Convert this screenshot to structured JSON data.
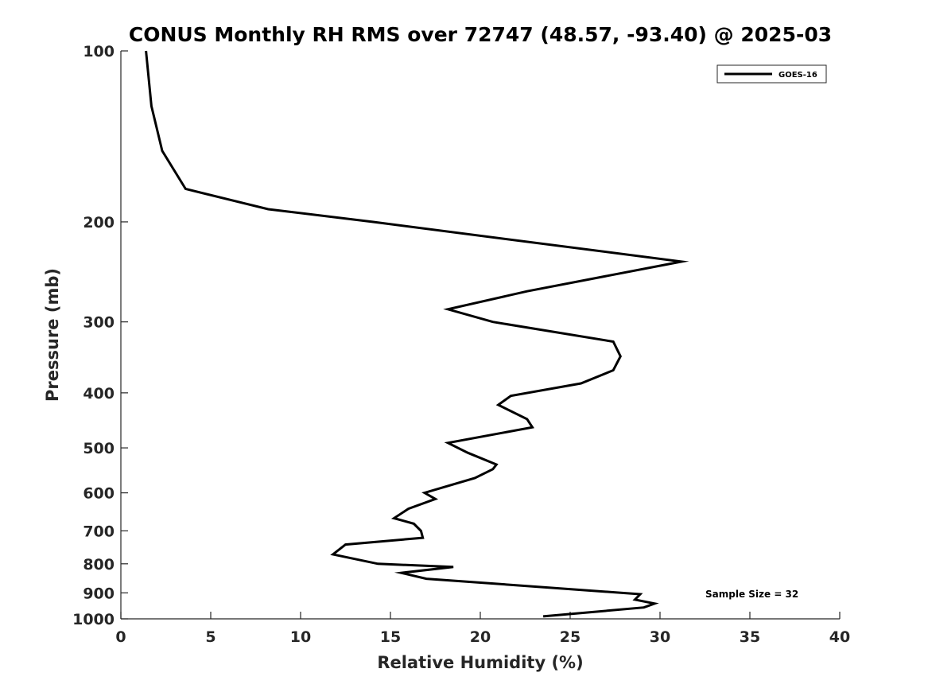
{
  "chart_data": {
    "type": "line",
    "title": "CONUS Monthly RH RMS over 72747 (48.57, -93.40) @ 2025-03",
    "xlabel": "Relative Humidity (%)",
    "ylabel": "Pressure (mb)",
    "xlim": [
      0,
      40
    ],
    "ylim": [
      100,
      1000
    ],
    "y_scale": "log",
    "y_reversed": true,
    "x_ticks": [
      0,
      5,
      10,
      15,
      20,
      25,
      30,
      35,
      40
    ],
    "x_tick_labels": [
      "0",
      "5",
      "10",
      "15",
      "20",
      "25",
      "30",
      "35",
      "40"
    ],
    "y_ticks": [
      100,
      200,
      300,
      400,
      500,
      600,
      700,
      800,
      900,
      1000
    ],
    "y_tick_labels": [
      "100",
      "200",
      "300",
      "400",
      "500",
      "600",
      "700",
      "800",
      "900",
      "1000"
    ],
    "grid": false,
    "legend_position": "top-right",
    "series": [
      {
        "name": "GOES-16",
        "color": "#000000",
        "x": [
          1.4,
          1.7,
          2.3,
          3.6,
          8.2,
          14.0,
          31.2,
          22.6,
          18.2,
          20.7,
          27.4,
          27.8,
          27.4,
          25.6,
          21.7,
          21.0,
          22.6,
          22.9,
          18.2,
          19.3,
          20.9,
          20.7,
          19.7,
          16.9,
          17.5,
          16.0,
          15.2,
          16.3,
          16.7,
          16.8,
          12.5,
          11.8,
          14.3,
          18.5,
          15.6,
          17.0,
          28.9,
          28.6,
          29.7,
          29.1,
          23.5
        ],
        "y": [
          100,
          125,
          150,
          175,
          190,
          200,
          235,
          265,
          285,
          300,
          325,
          345,
          365,
          385,
          405,
          420,
          445,
          460,
          490,
          510,
          535,
          545,
          565,
          600,
          615,
          640,
          665,
          680,
          700,
          720,
          740,
          770,
          800,
          810,
          830,
          850,
          905,
          925,
          940,
          955,
          990
        ]
      }
    ],
    "annotations": [
      "Sample Size = 32"
    ]
  }
}
